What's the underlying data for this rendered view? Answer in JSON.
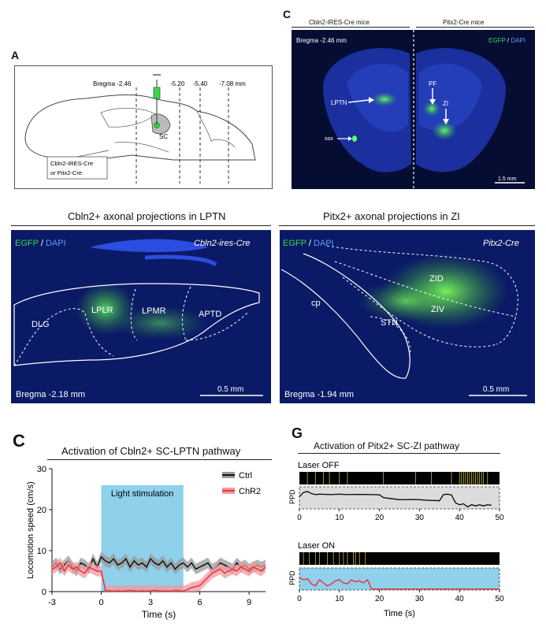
{
  "panelA": {
    "letter": "A",
    "bregma_labels": [
      "Bregma -2.46",
      "-5.20",
      "-5.40",
      "-7.08 mm"
    ],
    "sc_label": "SC",
    "mouse_line_1": "Cbln2-IRES-Cre",
    "mouse_line_2": "or Pitx2-Cre"
  },
  "panelC_top": {
    "letter": "C",
    "left_header": "Cbln2-IRES-Cre mice",
    "right_header": "Pitx2-Cre mice",
    "bregma": "Bregma -2.46 mm",
    "stain_egfp": "EGFP",
    "stain_sep": " / ",
    "stain_dapi": "DAPI",
    "labels": {
      "lptn": "LPTN",
      "pf": "PF",
      "zi": "ZI",
      "sox": "sox"
    },
    "scale": "1.5 mm"
  },
  "panelCbln2": {
    "title": "Cbln2+ axonal projections in LPTN",
    "stain_egfp": "EGFP",
    "stain_sep": " / ",
    "stain_dapi": "DAPI",
    "line": "Cbln2-ires-Cre",
    "regions": {
      "dlg": "DLG",
      "lplr": "LPLR",
      "lpmr": "LPMR",
      "aptd": "APTD"
    },
    "bregma": "Bregma -2.18 mm",
    "scale": "0.5 mm"
  },
  "panelPitx2": {
    "title": "Pitx2+ axonal projections in ZI",
    "stain_egfp": "EGFP",
    "stain_sep": " / ",
    "stain_dapi": "DAPI",
    "line": "Pitx2-Cre",
    "regions": {
      "cp": "cp",
      "zid": "ZID",
      "ziv": "ZIV",
      "stn": "STN"
    },
    "bregma": "Bregma -1.94 mm",
    "scale": "0.5 mm"
  },
  "panelC_bottom": {
    "letter": "C",
    "title": "Activation of Cbln2+ SC-LPTN pathway",
    "stim_label": "Light stimulation",
    "legend": [
      "Ctrl",
      "ChR2"
    ]
  },
  "panelG": {
    "letter": "G",
    "title": "Activation of Pitx2+ SC-ZI pathway",
    "off_label": "Laser OFF",
    "on_label": "Laser ON",
    "ppd_label": "PPD"
  },
  "colors": {
    "ctrl": "#111111",
    "chr2": "#e8333a",
    "ctrl_band": "#9a9a9a",
    "chr2_band": "#f29a9e",
    "stim": "#8fd0ea",
    "egfp": "#39d64a",
    "dapi": "#3a7bd5",
    "raster_tick": "#c8b84a"
  },
  "chart_data": [
    {
      "type": "line",
      "xlabel": "Time (s)",
      "ylabel": "Locomotion speed (cm/s)",
      "xlim": [
        -3,
        10
      ],
      "ylim": [
        0,
        30
      ],
      "xticks": [
        -3,
        0,
        3,
        6,
        9
      ],
      "yticks": [
        0,
        10,
        20,
        30
      ],
      "stimulus_window": [
        0,
        5
      ],
      "x": [
        -3,
        -2.75,
        -2.5,
        -2.25,
        -2,
        -1.75,
        -1.5,
        -1.25,
        -1,
        -0.75,
        -0.5,
        -0.25,
        0,
        0.25,
        0.5,
        0.75,
        1,
        1.25,
        1.5,
        1.75,
        2,
        2.25,
        2.5,
        2.75,
        3,
        3.25,
        3.5,
        3.75,
        4,
        4.25,
        4.5,
        4.75,
        5,
        5.25,
        5.5,
        5.75,
        6,
        6.25,
        6.5,
        6.75,
        7,
        7.25,
        7.5,
        7.75,
        8,
        8.25,
        8.5,
        8.75,
        9,
        9.25,
        9.5,
        9.75,
        10
      ],
      "series": [
        {
          "name": "Ctrl",
          "values": [
            6,
            7,
            5.5,
            6.5,
            7.5,
            6,
            5,
            7,
            6.5,
            5.5,
            8,
            6,
            8.5,
            7.5,
            7,
            8,
            6.5,
            7,
            8,
            6,
            7.5,
            6.5,
            7,
            6,
            8,
            7,
            6.5,
            7.5,
            6,
            7,
            5.5,
            6.5,
            7,
            6,
            7,
            5.5,
            6,
            6.5,
            7,
            5.5,
            6,
            7,
            6.5,
            6,
            5.5,
            7,
            6,
            6.5,
            5.5,
            6,
            6.5,
            6,
            6.5
          ]
        },
        {
          "name": "ChR2",
          "values": [
            5.5,
            6,
            7,
            5,
            6.5,
            5.5,
            6,
            5,
            4.5,
            6,
            5.5,
            5,
            5,
            0.3,
            0.2,
            0.1,
            0.2,
            0.1,
            0.2,
            0.3,
            0.2,
            0.1,
            0.2,
            0.1,
            0.2,
            0.3,
            0.2,
            0.1,
            0.2,
            0.1,
            0.3,
            0.2,
            0.1,
            0.5,
            1,
            1.2,
            1.5,
            2.5,
            3.5,
            4.5,
            5,
            5.5,
            4.5,
            5,
            5.5,
            5,
            6,
            5.5,
            5,
            6,
            5.5,
            5,
            6
          ]
        }
      ]
    },
    {
      "type": "line",
      "xlabel": "",
      "ylabel": "PPD",
      "xlim": [
        0,
        50
      ],
      "xticks": [
        0,
        10,
        20,
        30,
        40,
        50
      ],
      "series": [
        {
          "name": "Laser OFF",
          "x": [
            0,
            1,
            2,
            3,
            4,
            5,
            8,
            10,
            12,
            15,
            18,
            20,
            21,
            23,
            25,
            28,
            30,
            32,
            35,
            36,
            37,
            38,
            39,
            40,
            41,
            42,
            43,
            44,
            45,
            46,
            47,
            48
          ],
          "values": [
            0.6,
            0.8,
            0.85,
            0.75,
            0.7,
            0.72,
            0.7,
            0.72,
            0.7,
            0.71,
            0.7,
            0.69,
            0.55,
            0.5,
            0.45,
            0.46,
            0.45,
            0.42,
            0.4,
            0.7,
            0.72,
            0.68,
            0.3,
            0.2,
            0.25,
            0.1,
            0.2,
            0.15,
            0.2,
            0.15,
            0.2,
            0.18
          ]
        },
        {
          "name": "Laser ON",
          "x": [
            0,
            1,
            2,
            3,
            4,
            5,
            6,
            7,
            8,
            9,
            10,
            11,
            12,
            13,
            14,
            15,
            16,
            17,
            17.5,
            18,
            50
          ],
          "values": [
            0.6,
            0.5,
            0.55,
            0.3,
            0.2,
            0.5,
            0.35,
            0.2,
            0.3,
            0.45,
            0.5,
            0.35,
            0.3,
            0.5,
            0.4,
            0.45,
            0.35,
            0.5,
            0.3,
            0.05,
            0.05
          ]
        }
      ]
    }
  ]
}
